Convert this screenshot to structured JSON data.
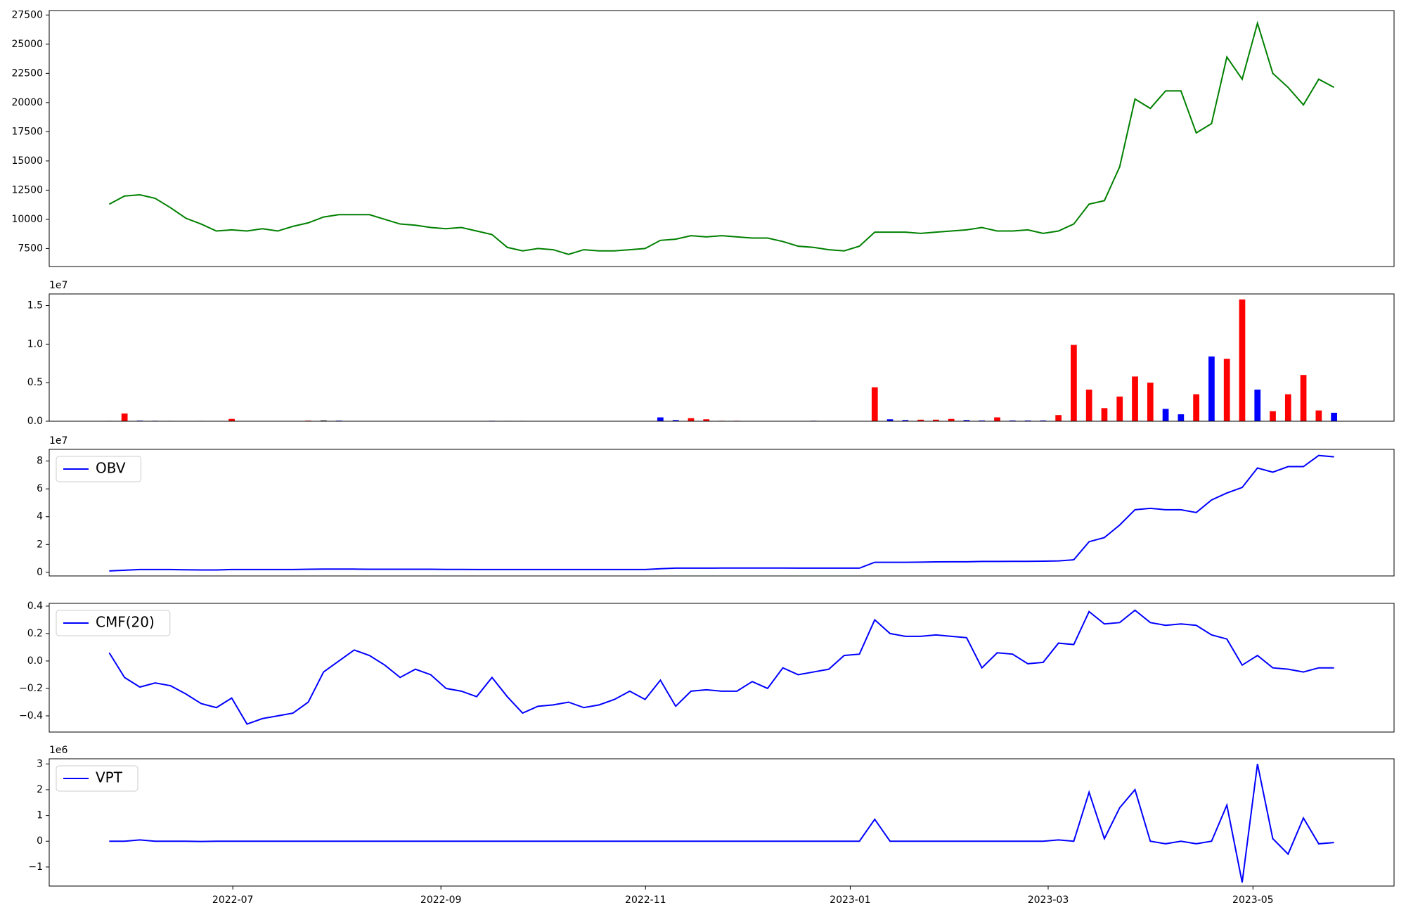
{
  "chart_data": [
    {
      "type": "line",
      "x": [
        2022.395,
        2022.4075,
        2022.42,
        2022.4325,
        2022.445,
        2022.4575,
        2022.47,
        2022.4825,
        2022.495,
        2022.5075,
        2022.52,
        2022.5325,
        2022.545,
        2022.5575,
        2022.57,
        2022.5825,
        2022.595,
        2022.6075,
        2022.62,
        2022.6325,
        2022.645,
        2022.6575,
        2022.67,
        2022.6825,
        2022.695,
        2022.7075,
        2022.72,
        2022.7325,
        2022.745,
        2022.7575,
        2022.77,
        2022.7825,
        2022.795,
        2022.8075,
        2022.82,
        2022.8325,
        2022.845,
        2022.8575,
        2022.87,
        2022.8825,
        2022.895,
        2022.9075,
        2022.92,
        2022.9325,
        2022.945,
        2022.9575,
        2022.97,
        2022.9825,
        2022.995,
        2023.0075,
        2023.02,
        2023.0325,
        2023.045,
        2023.0575,
        2023.07,
        2023.0825,
        2023.095,
        2023.1075,
        2023.12,
        2023.1325,
        2023.145,
        2023.1575,
        2023.17,
        2023.1825,
        2023.195,
        2023.2075,
        2023.22,
        2023.2325,
        2023.245,
        2023.2575,
        2023.27,
        2023.2825,
        2023.295,
        2023.3075,
        2023.32,
        2023.3325,
        2023.345,
        2023.3575,
        2023.37,
        2023.3825,
        2023.395
      ],
      "series": [
        {
          "color": "#008000",
          "values": [
            11300,
            12000,
            12100,
            11800,
            11000,
            10100,
            9600,
            9000,
            9100,
            9000,
            9200,
            9000,
            9400,
            9700,
            10200,
            10400,
            10400,
            10400,
            10000,
            9600,
            9500,
            9300,
            9200,
            9300,
            9000,
            8700,
            7600,
            7300,
            7500,
            7400,
            7000,
            7400,
            7300,
            7300,
            7400,
            7500,
            8200,
            8300,
            8600,
            8500,
            8600,
            8500,
            8400,
            8400,
            8100,
            7700,
            7600,
            7400,
            7300,
            7700,
            8900,
            8900,
            8900,
            8800,
            8900,
            9000,
            9100,
            9300,
            9000,
            9000,
            9100,
            8800,
            9000,
            9600,
            11300,
            11600,
            14500,
            20300,
            19500,
            21000,
            21000,
            17400,
            18200,
            23900,
            22000,
            26800,
            22500,
            21300,
            19800,
            22000,
            21300
          ]
        }
      ],
      "xlim": [
        2022.346,
        2023.444
      ],
      "ylim": [
        5960,
        27880
      ],
      "yticks": [
        7500,
        10000,
        12500,
        15000,
        17500,
        20000,
        22500,
        25000,
        27500
      ]
    },
    {
      "type": "bar",
      "x": [
        2022.395,
        2022.4075,
        2022.42,
        2022.4325,
        2022.445,
        2022.4575,
        2022.47,
        2022.4825,
        2022.495,
        2022.5075,
        2022.52,
        2022.5325,
        2022.545,
        2022.5575,
        2022.57,
        2022.5825,
        2022.595,
        2022.6075,
        2022.62,
        2022.6325,
        2022.645,
        2022.6575,
        2022.67,
        2022.6825,
        2022.695,
        2022.7075,
        2022.72,
        2022.7325,
        2022.745,
        2022.7575,
        2022.77,
        2022.7825,
        2022.795,
        2022.8075,
        2022.82,
        2022.8325,
        2022.845,
        2022.8575,
        2022.87,
        2022.8825,
        2022.895,
        2022.9075,
        2022.92,
        2022.9325,
        2022.945,
        2022.9575,
        2022.97,
        2022.9825,
        2022.995,
        2023.0075,
        2023.02,
        2023.0325,
        2023.045,
        2023.0575,
        2023.07,
        2023.0825,
        2023.095,
        2023.1075,
        2023.12,
        2023.1325,
        2023.145,
        2023.1575,
        2023.17,
        2023.1825,
        2023.195,
        2023.2075,
        2023.22,
        2023.2325,
        2023.245,
        2023.2575,
        2023.27,
        2023.2825,
        2023.295,
        2023.3075,
        2023.32,
        2023.3325,
        2023.345,
        2023.3575,
        2023.37,
        2023.3825,
        2023.395
      ],
      "values": [
        50000,
        1000000,
        80000,
        60000,
        50000,
        40000,
        50000,
        40000,
        300000,
        30000,
        20000,
        20000,
        20000,
        80000,
        100000,
        80000,
        20000,
        30000,
        20000,
        40000,
        30000,
        20000,
        20000,
        30000,
        30000,
        60000,
        50000,
        50000,
        40000,
        40000,
        30000,
        20000,
        20000,
        20000,
        20000,
        20000,
        500000,
        150000,
        400000,
        250000,
        60000,
        60000,
        20000,
        20000,
        20000,
        20000,
        60000,
        20000,
        20000,
        20000,
        4400000,
        250000,
        150000,
        200000,
        200000,
        300000,
        150000,
        100000,
        500000,
        100000,
        100000,
        100000,
        800000,
        9900000,
        4100000,
        1700000,
        3200000,
        5800000,
        5000000,
        1600000,
        900000,
        3500000,
        8400000,
        8100000,
        15800000,
        4100000,
        1300000,
        3500000,
        6000000,
        1400000,
        1100000
      ],
      "colors": [
        "black",
        "red",
        "blue",
        "blue",
        "blue",
        "red",
        "red",
        "blue",
        "red",
        "blue",
        "red",
        "red",
        "red",
        "red",
        "black",
        "blue",
        "blue",
        "blue",
        "blue",
        "blue",
        "blue",
        "red",
        "blue",
        "blue",
        "blue",
        "blue",
        "blue",
        "blue",
        "red",
        "red",
        "black",
        "blue",
        "blue",
        "blue",
        "blue",
        "blue",
        "blue",
        "blue",
        "red",
        "red",
        "red",
        "red",
        "blue",
        "blue",
        "blue",
        "blue",
        "blue",
        "blue",
        "blue",
        "blue",
        "red",
        "blue",
        "blue",
        "red",
        "red",
        "red",
        "blue",
        "blue",
        "red",
        "blue",
        "blue",
        "blue",
        "red",
        "red",
        "red",
        "red",
        "red",
        "red",
        "red",
        "blue",
        "blue",
        "red",
        "blue",
        "red",
        "red",
        "blue",
        "red",
        "red",
        "red",
        "red",
        "blue"
      ],
      "offset_label": "1e7",
      "xlim": [
        2022.346,
        2023.444
      ],
      "ylim": [
        0,
        16510000
      ],
      "yticks": [
        {
          "value": 0,
          "label": "0.0"
        },
        {
          "value": 5000000,
          "label": "0.5"
        },
        {
          "value": 10000000,
          "label": "1.0"
        },
        {
          "value": 15000000,
          "label": "1.5"
        }
      ]
    },
    {
      "type": "line",
      "x": [
        2022.395,
        2022.4075,
        2022.42,
        2022.4325,
        2022.445,
        2022.4575,
        2022.47,
        2022.4825,
        2022.495,
        2022.5075,
        2022.52,
        2022.5325,
        2022.545,
        2022.5575,
        2022.57,
        2022.5825,
        2022.595,
        2022.6075,
        2022.62,
        2022.6325,
        2022.645,
        2022.6575,
        2022.67,
        2022.6825,
        2022.695,
        2022.7075,
        2022.72,
        2022.7325,
        2022.745,
        2022.7575,
        2022.77,
        2022.7825,
        2022.795,
        2022.8075,
        2022.82,
        2022.8325,
        2022.845,
        2022.8575,
        2022.87,
        2022.8825,
        2022.895,
        2022.9075,
        2022.92,
        2022.9325,
        2022.945,
        2022.9575,
        2022.97,
        2022.9825,
        2022.995,
        2023.0075,
        2023.02,
        2023.0325,
        2023.045,
        2023.0575,
        2023.07,
        2023.0825,
        2023.095,
        2023.1075,
        2023.12,
        2023.1325,
        2023.145,
        2023.1575,
        2023.17,
        2023.1825,
        2023.195,
        2023.2075,
        2023.22,
        2023.2325,
        2023.245,
        2023.2575,
        2023.27,
        2023.2825,
        2023.295,
        2023.3075,
        2023.32,
        2023.3325,
        2023.345,
        2023.3575,
        2023.37,
        2023.3825,
        2023.395
      ],
      "series": [
        {
          "name": "OBV",
          "color": "#0000ff",
          "values": [
            1000000,
            1500000,
            2000000,
            2000000,
            2000000,
            1800000,
            1700000,
            1700000,
            2000000,
            2000000,
            2000000,
            2000000,
            2000000,
            2200000,
            2300000,
            2300000,
            2300000,
            2200000,
            2200000,
            2200000,
            2200000,
            2200000,
            2100000,
            2100000,
            2000000,
            2000000,
            2000000,
            2000000,
            2000000,
            2000000,
            2000000,
            2000000,
            2000000,
            2000000,
            2000000,
            2000000,
            2600000,
            3000000,
            3000000,
            3000000,
            3100000,
            3100000,
            3100000,
            3100000,
            3100000,
            3000000,
            3000000,
            3000000,
            3000000,
            3000000,
            7200000,
            7200000,
            7200000,
            7300000,
            7500000,
            7600000,
            7600000,
            7800000,
            7800000,
            7900000,
            7900000,
            8000000,
            8200000,
            9000000,
            22000000,
            25000000,
            34000000,
            45000000,
            46000000,
            45000000,
            45000000,
            43000000,
            52000000,
            57000000,
            61000000,
            75000000,
            72000000,
            76000000,
            76000000,
            84000000,
            83000000
          ]
        }
      ],
      "offset_label": "1e7",
      "legend": "upper left",
      "xlim": [
        2022.346,
        2023.444
      ],
      "ylim": [
        -2600000,
        88400000
      ],
      "yticks": [
        {
          "value": 0,
          "label": "0"
        },
        {
          "value": 20000000,
          "label": "2"
        },
        {
          "value": 40000000,
          "label": "4"
        },
        {
          "value": 60000000,
          "label": "6"
        },
        {
          "value": 80000000,
          "label": "8"
        }
      ]
    },
    {
      "type": "line",
      "x": [
        2022.395,
        2022.4075,
        2022.42,
        2022.4325,
        2022.445,
        2022.4575,
        2022.47,
        2022.4825,
        2022.495,
        2022.5075,
        2022.52,
        2022.5325,
        2022.545,
        2022.5575,
        2022.57,
        2022.5825,
        2022.595,
        2022.6075,
        2022.62,
        2022.6325,
        2022.645,
        2022.6575,
        2022.67,
        2022.6825,
        2022.695,
        2022.7075,
        2022.72,
        2022.7325,
        2022.745,
        2022.7575,
        2022.77,
        2022.7825,
        2022.795,
        2022.8075,
        2022.82,
        2022.8325,
        2022.845,
        2022.8575,
        2022.87,
        2022.8825,
        2022.895,
        2022.9075,
        2022.92,
        2022.9325,
        2022.945,
        2022.9575,
        2022.97,
        2022.9825,
        2022.995,
        2023.0075,
        2023.02,
        2023.0325,
        2023.045,
        2023.0575,
        2023.07,
        2023.0825,
        2023.095,
        2023.1075,
        2023.12,
        2023.1325,
        2023.145,
        2023.1575,
        2023.17,
        2023.1825,
        2023.195,
        2023.2075,
        2023.22,
        2023.2325,
        2023.245,
        2023.2575,
        2023.27,
        2023.2825,
        2023.295,
        2023.3075,
        2023.32,
        2023.3325,
        2023.345,
        2023.3575,
        2023.37,
        2023.3825,
        2023.395
      ],
      "series": [
        {
          "name": "CMF(20)",
          "color": "#0000ff",
          "values": [
            0.06,
            -0.12,
            -0.19,
            -0.16,
            -0.18,
            -0.24,
            -0.31,
            -0.34,
            -0.27,
            -0.46,
            -0.42,
            -0.4,
            -0.38,
            -0.3,
            -0.08,
            0.0,
            0.08,
            0.04,
            -0.03,
            -0.12,
            -0.06,
            -0.1,
            -0.2,
            -0.22,
            -0.26,
            -0.12,
            -0.26,
            -0.38,
            -0.33,
            -0.32,
            -0.3,
            -0.34,
            -0.32,
            -0.28,
            -0.22,
            -0.28,
            -0.14,
            -0.33,
            -0.22,
            -0.21,
            -0.22,
            -0.22,
            -0.15,
            -0.2,
            -0.05,
            -0.1,
            -0.08,
            -0.06,
            0.04,
            0.05,
            0.3,
            0.2,
            0.18,
            0.18,
            0.19,
            0.18,
            0.17,
            -0.05,
            0.06,
            0.05,
            -0.02,
            -0.01,
            0.13,
            0.12,
            0.36,
            0.27,
            0.28,
            0.37,
            0.28,
            0.26,
            0.27,
            0.26,
            0.19,
            0.16,
            -0.03,
            0.04,
            -0.05,
            -0.06,
            -0.08,
            -0.05,
            -0.05
          ]
        }
      ],
      "legend": "upper left",
      "xlim": [
        2022.346,
        2023.444
      ],
      "ylim": [
        -0.518,
        0.42
      ],
      "yticks": [
        {
          "value": -0.4,
          "label": "−0.4"
        },
        {
          "value": -0.2,
          "label": "−0.2"
        },
        {
          "value": 0,
          "label": "0.0"
        },
        0.2,
        0.4
      ]
    },
    {
      "type": "line",
      "x": [
        2022.395,
        2022.4075,
        2022.42,
        2022.4325,
        2022.445,
        2022.4575,
        2022.47,
        2022.4825,
        2022.495,
        2022.5075,
        2022.52,
        2022.5325,
        2022.545,
        2022.5575,
        2022.57,
        2022.5825,
        2022.595,
        2022.6075,
        2022.62,
        2022.6325,
        2022.645,
        2022.6575,
        2022.67,
        2022.6825,
        2022.695,
        2022.7075,
        2022.72,
        2022.7325,
        2022.745,
        2022.7575,
        2022.77,
        2022.7825,
        2022.795,
        2022.8075,
        2022.82,
        2022.8325,
        2022.845,
        2022.8575,
        2022.87,
        2022.8825,
        2022.895,
        2022.9075,
        2022.92,
        2022.9325,
        2022.945,
        2022.9575,
        2022.97,
        2022.9825,
        2022.995,
        2023.0075,
        2023.02,
        2023.0325,
        2023.045,
        2023.0575,
        2023.07,
        2023.0825,
        2023.095,
        2023.1075,
        2023.12,
        2023.1325,
        2023.145,
        2023.1575,
        2023.17,
        2023.1825,
        2023.195,
        2023.2075,
        2023.22,
        2023.2325,
        2023.245,
        2023.2575,
        2023.27,
        2023.2825,
        2023.295,
        2023.3075,
        2023.32,
        2023.3325,
        2023.345,
        2023.3575,
        2023.37,
        2023.3825,
        2023.395
      ],
      "series": [
        {
          "name": "VPT",
          "color": "#0000ff",
          "values": [
            0,
            0,
            50000,
            0,
            0,
            0,
            -10000,
            0,
            0,
            0,
            0,
            0,
            0,
            0,
            0,
            0,
            0,
            0,
            0,
            0,
            0,
            0,
            0,
            0,
            0,
            0,
            0,
            0,
            0,
            0,
            0,
            0,
            0,
            0,
            0,
            0,
            0,
            0,
            0,
            0,
            0,
            0,
            0,
            0,
            0,
            0,
            0,
            0,
            0,
            0,
            850000,
            0,
            0,
            0,
            0,
            0,
            0,
            0,
            0,
            0,
            0,
            0,
            50000,
            0,
            1900000,
            100000,
            1300000,
            2000000,
            0,
            -100000,
            0,
            -100000,
            0,
            1400000,
            -1600000,
            3000000,
            100000,
            -500000,
            900000,
            -100000,
            -50000
          ]
        }
      ],
      "offset_label": "1e6",
      "legend": "upper left",
      "xlim": [
        2022.346,
        2023.444
      ],
      "ylim": [
        -1740000,
        3200000
      ],
      "yticks": [
        {
          "value": -1000000,
          "label": "−1"
        },
        {
          "value": 0,
          "label": "0"
        },
        {
          "value": 1000000,
          "label": "1"
        },
        {
          "value": 2000000,
          "label": "2"
        },
        {
          "value": 3000000,
          "label": "3"
        }
      ],
      "xticks": [
        {
          "value": 2022.4959,
          "label": "2022-07"
        },
        {
          "value": 2022.6658,
          "label": "2022-09"
        },
        {
          "value": 2022.8329,
          "label": "2022-11"
        },
        {
          "value": 2023.0,
          "label": "2023-01"
        },
        {
          "value": 2023.1616,
          "label": "2023-03"
        },
        {
          "value": 2023.3288,
          "label": "2023-05"
        }
      ]
    }
  ]
}
